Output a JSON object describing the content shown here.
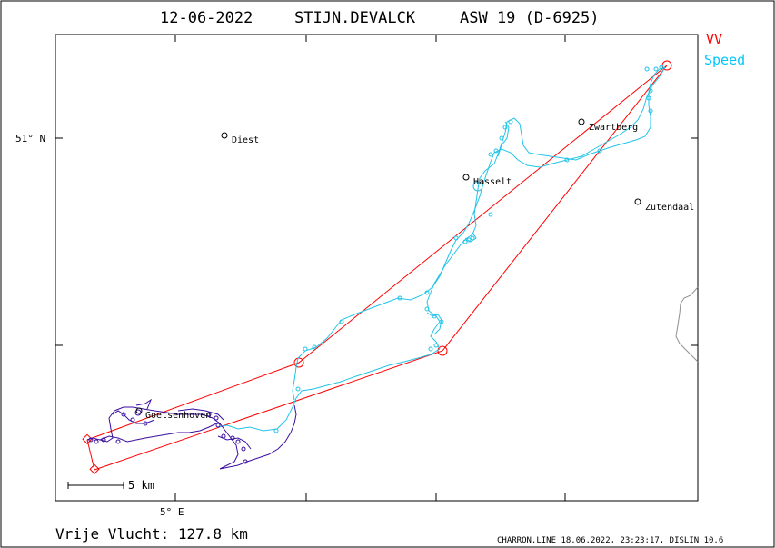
{
  "title": {
    "date": "12-06-2022",
    "pilot": "STIJN.DEVALCK",
    "glider": "ASW 19 (D-6925)"
  },
  "legend": [
    {
      "label": "VV",
      "color": "#ff0000"
    },
    {
      "label": "Speed",
      "color": "#00c8ff"
    }
  ],
  "axes": {
    "lat_label": "51° N",
    "lon_label": "5° E"
  },
  "places": [
    {
      "name": "Diest"
    },
    {
      "name": "Zwartberg"
    },
    {
      "name": "Hasselt"
    },
    {
      "name": "Zutendaal"
    },
    {
      "name": "Goetsenhoven"
    }
  ],
  "scale_bar": {
    "label": "5  km"
  },
  "footer": {
    "distance": "Vrije Vlucht:  127.8 km",
    "credit": "CHARRON.LINE 18.06.2022, 23:23:17, DISLIN 10.6"
  },
  "colors": {
    "task": "#ff0000",
    "track_fast": "#22c4e8",
    "track_slow": "#3a0ea0",
    "frame": "#000000",
    "border": "#909090"
  }
}
